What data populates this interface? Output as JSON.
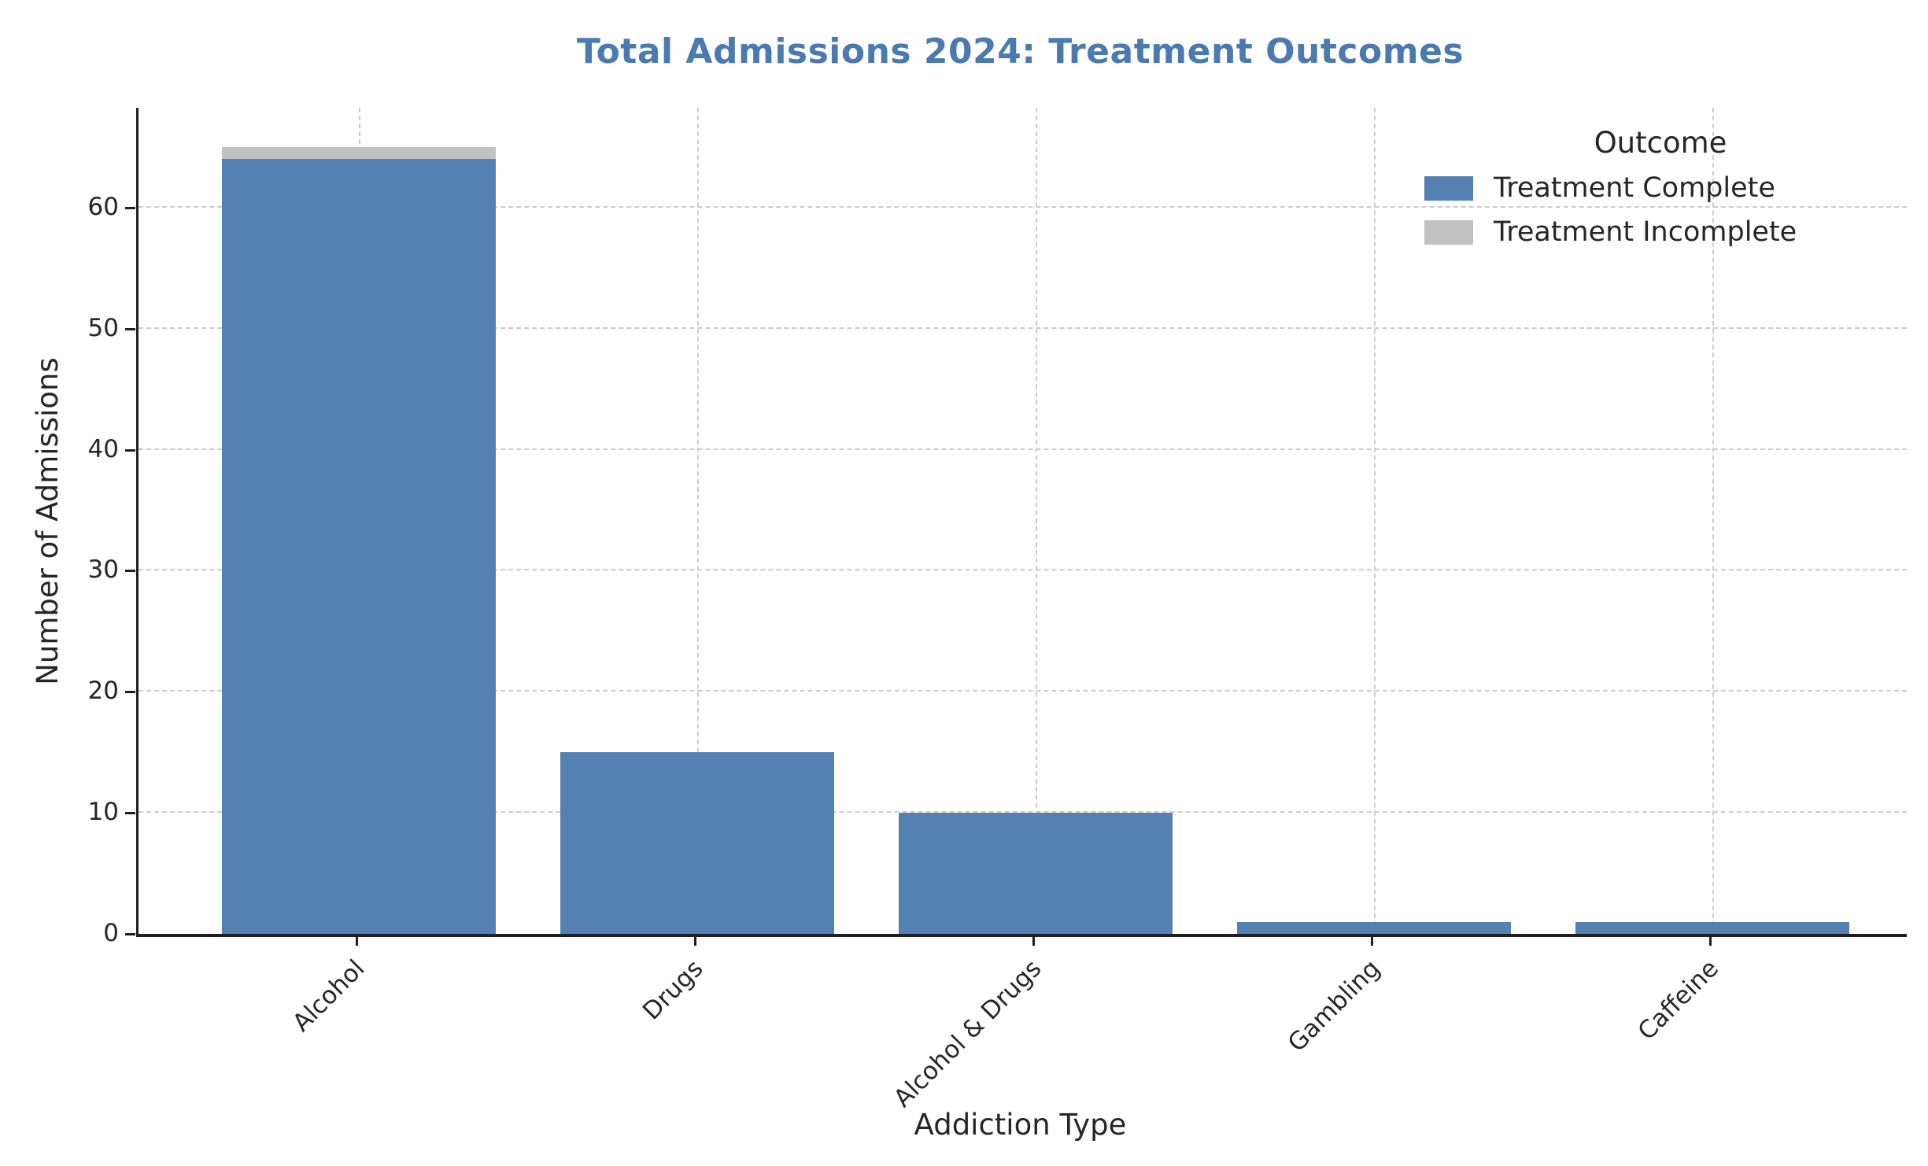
{
  "chart_data": {
    "type": "bar",
    "stacked": true,
    "title": "Total Admissions 2024: Treatment Outcomes",
    "title_color": "#4A7AB0",
    "xlabel": "Addiction Type",
    "ylabel": "Number of Admissions",
    "categories": [
      "Alcohol",
      "Drugs",
      "Alcohol & Drugs",
      "Gambling",
      "Caffeine"
    ],
    "series": [
      {
        "name": "Treatment Complete",
        "color": "#5581B2",
        "values": [
          64,
          15,
          10,
          1,
          1
        ]
      },
      {
        "name": "Treatment Incomplete",
        "color": "#C2C2C2",
        "values": [
          1,
          0,
          0,
          0,
          0
        ]
      }
    ],
    "yticks": [
      0,
      10,
      20,
      30,
      40,
      50,
      60
    ],
    "ylim": [
      0,
      68.25
    ],
    "grid": true,
    "grid_style": "dashed",
    "legend_title": "Outcome",
    "legend_position": "upper right",
    "tick_rotation_x": 45
  }
}
